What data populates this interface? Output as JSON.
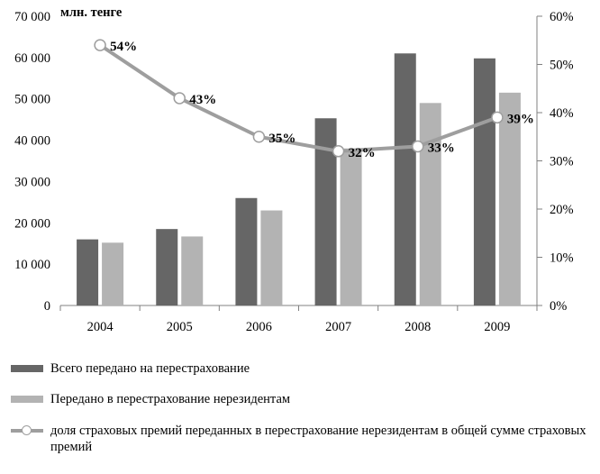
{
  "chart_data": {
    "type": "bar",
    "unit_label": "млн. тенге",
    "categories": [
      "2004",
      "2005",
      "2006",
      "2007",
      "2008",
      "2009"
    ],
    "series": [
      {
        "name": "Всего передано на перестрахование",
        "kind": "bar",
        "axis": "left",
        "color": "#666666",
        "values": [
          16000,
          18500,
          26000,
          45300,
          61000,
          59800
        ]
      },
      {
        "name": "Передано в перестрахование нерезидентам",
        "kind": "bar",
        "axis": "left",
        "color": "#b3b3b3",
        "values": [
          15200,
          16700,
          23000,
          38000,
          49000,
          51500
        ]
      },
      {
        "name": "доля страховых премий переданных в перестрахование нерезидентам в общей сумме страховых премий",
        "kind": "line",
        "axis": "right",
        "color": "#9e9e9e",
        "values": [
          54,
          43,
          35,
          32,
          33,
          39
        ],
        "labels": [
          "54%",
          "43%",
          "35%",
          "32%",
          "33%",
          "39%"
        ]
      }
    ],
    "ylim_left": [
      0,
      70000
    ],
    "yticks_left": [
      "0",
      "10 000",
      "20 000",
      "30 000",
      "40 000",
      "50 000",
      "60 000",
      "70 000"
    ],
    "ylim_right": [
      0,
      60
    ],
    "yticks_right": [
      "0%",
      "10%",
      "20%",
      "30%",
      "40%",
      "50%",
      "60%"
    ],
    "grid": false,
    "legend_position": "bottom"
  },
  "legend": {
    "items": [
      "Всего передано на перестрахование",
      "Передано в перестрахование нерезидентам",
      "доля страховых премий переданных в перестрахование нерезидентам в общей сумме страховых премий"
    ]
  }
}
